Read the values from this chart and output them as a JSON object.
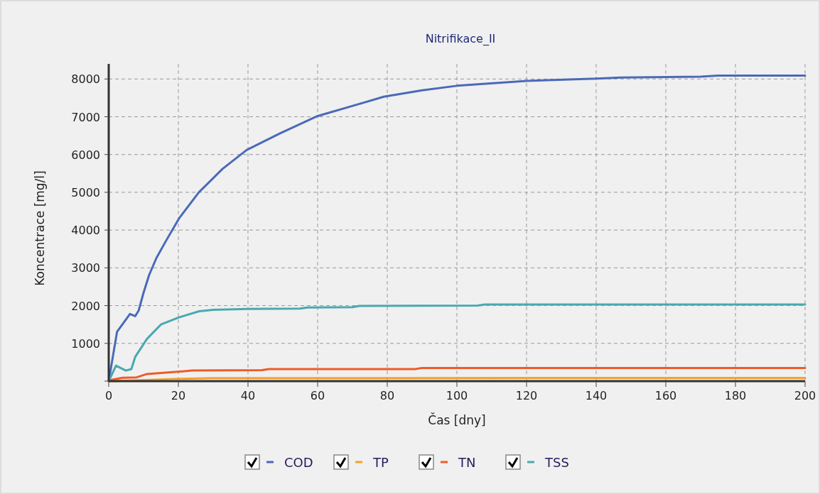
{
  "chart_data": {
    "type": "line",
    "title": "Nitrifikace_II",
    "xlabel": "Čas [dny]",
    "ylabel": "Koncentrace [mg/l]",
    "xlim": [
      0,
      200
    ],
    "xticks": [
      0,
      20,
      40,
      60,
      80,
      100,
      120,
      140,
      160,
      180,
      200
    ],
    "ylim": [
      0,
      8400
    ],
    "yticks": [
      {
        "value": 0,
        "label": null
      },
      1000,
      2000,
      3000,
      4000,
      5000,
      6000,
      7000,
      8000
    ],
    "grid": true,
    "legend": "bottom",
    "line_style": "solid",
    "marker": "none",
    "series": [
      {
        "name": "COD",
        "color": "#4a6ab8",
        "x": [
          0,
          2.4,
          6.1,
          7.6,
          8.6,
          10,
          11.6,
          13.7,
          16.3,
          20.2,
          25.9,
          32.7,
          39.6,
          49,
          60,
          72,
          79,
          90,
          100,
          120,
          140,
          147,
          170,
          175,
          200
        ],
        "values": [
          0,
          1310,
          1780,
          1720,
          1870,
          2340,
          2810,
          3260,
          3690,
          4310,
          5000,
          5620,
          6120,
          6550,
          7020,
          7340,
          7530,
          7700,
          7820,
          7950,
          8010,
          8040,
          8060,
          8090,
          8090
        ]
      },
      {
        "name": "TP",
        "color": "#f5a030",
        "x": [
          0,
          10,
          20,
          30,
          200
        ],
        "values": [
          0,
          30,
          60,
          80,
          85
        ]
      },
      {
        "name": "TN",
        "color": "#f05a28",
        "x": [
          0,
          1,
          4,
          8,
          11,
          17,
          24,
          44,
          46,
          88,
          90,
          200
        ],
        "values": [
          0,
          40,
          90,
          100,
          190,
          230,
          280,
          290,
          320,
          320,
          350,
          350
        ]
      },
      {
        "name": "TSS",
        "color": "#4aa8b0",
        "x": [
          0,
          2.1,
          4.9,
          6.5,
          7.6,
          11,
          15,
          20.2,
          26,
          30,
          40,
          55,
          57,
          70,
          72,
          106,
          108,
          200
        ],
        "values": [
          0,
          410,
          280,
          320,
          640,
          1120,
          1500,
          1690,
          1850,
          1890,
          1910,
          1920,
          1950,
          1960,
          1990,
          2000,
          2030,
          2030
        ]
      }
    ]
  }
}
